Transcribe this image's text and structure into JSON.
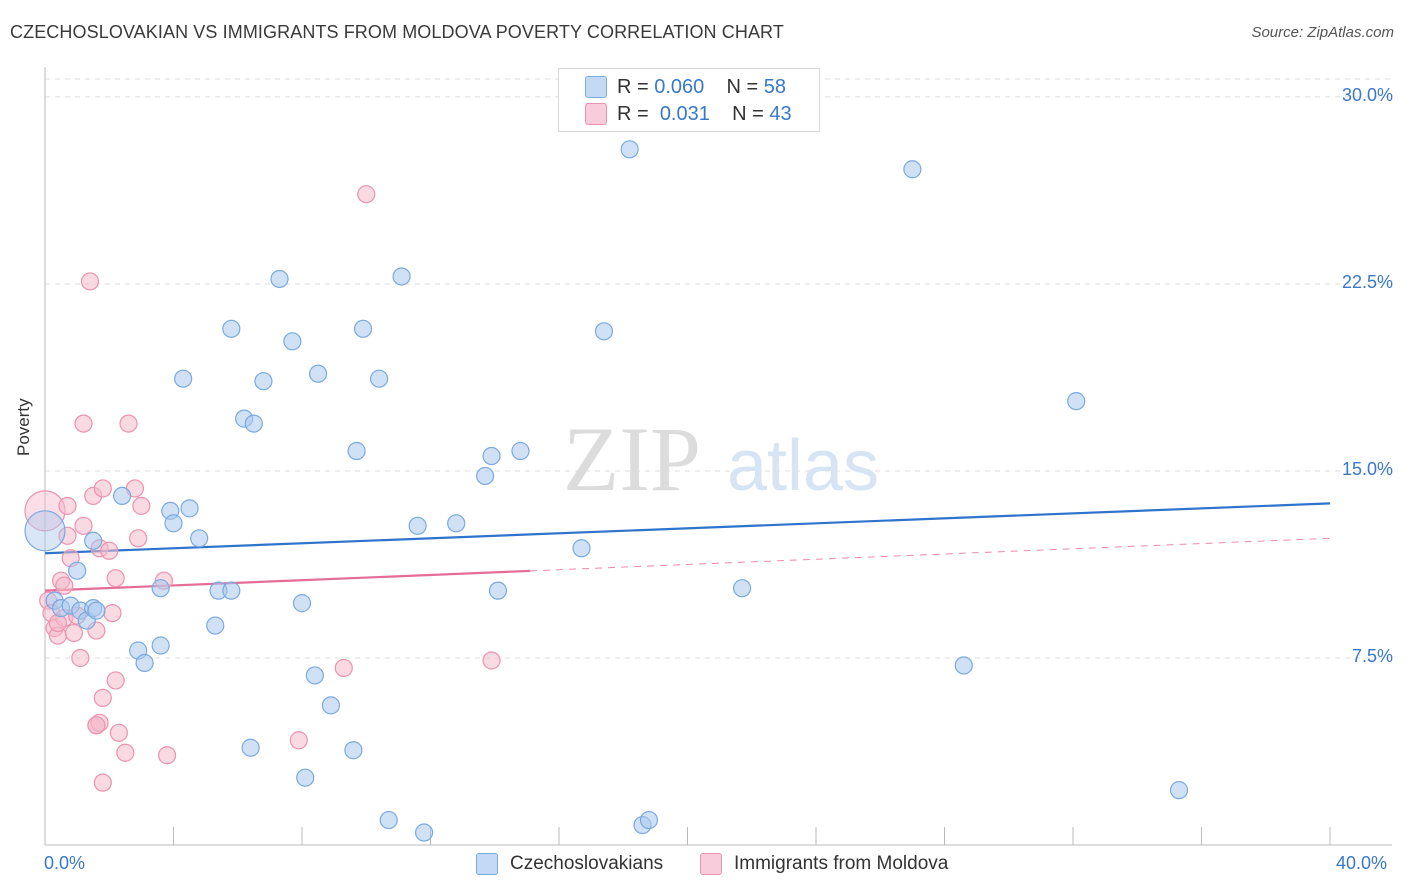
{
  "title": "CZECHOSLOVAKIAN VS IMMIGRANTS FROM MOLDOVA POVERTY CORRELATION CHART",
  "source": "Source: ZipAtlas.com",
  "watermark": {
    "zip": "ZIP",
    "atlas": "atlas"
  },
  "colors": {
    "blue_fill": "#a9c8ee",
    "blue_stroke": "#7aaae0",
    "blue_line": "#2f74cc",
    "pink_fill": "#f4b9cb",
    "pink_stroke": "#ec93b0",
    "pink_line": "#e46d98",
    "axis_text": "#3a78c9",
    "grid": "#dddddd"
  },
  "legend": {
    "blue": {
      "r_label": "R = ",
      "r_value": "0.060",
      "n_label": "N = ",
      "n_value": "58"
    },
    "pink": {
      "r_label": "R = ",
      "r_value": "0.031",
      "n_label": "N = ",
      "n_value": "43"
    }
  },
  "chart_data": {
    "type": "scatter",
    "title": "CZECHOSLOVAKIAN VS IMMIGRANTS FROM MOLDOVA POVERTY CORRELATION CHART",
    "xlabel": "",
    "ylabel": "Poverty",
    "xlim": [
      0,
      40
    ],
    "ylim": [
      0,
      31
    ],
    "x_tick_labels": [
      "0.0%",
      "40.0%"
    ],
    "y_ticks": [
      7.5,
      15.0,
      22.5,
      30.0
    ],
    "y_tick_labels": [
      "7.5%",
      "15.0%",
      "22.5%",
      "30.0%"
    ],
    "grid": true,
    "series": [
      {
        "name": "Czechoslovakians",
        "color": "#a9c8ee",
        "trend": {
          "x0": 0,
          "y0": 11.7,
          "x1": 40,
          "y1": 13.7,
          "dashed_from": null
        },
        "points": [
          [
            0.0,
            12.6
          ],
          [
            0.3,
            9.8
          ],
          [
            0.5,
            9.5
          ],
          [
            0.8,
            9.6
          ],
          [
            1.0,
            11.0
          ],
          [
            1.1,
            9.4
          ],
          [
            1.3,
            9.0
          ],
          [
            1.5,
            9.5
          ],
          [
            1.6,
            9.4
          ],
          [
            2.4,
            14.0
          ],
          [
            2.9,
            7.8
          ],
          [
            3.1,
            7.3
          ],
          [
            3.6,
            8.0
          ],
          [
            3.9,
            13.4
          ],
          [
            4.3,
            18.7
          ],
          [
            4.8,
            12.3
          ],
          [
            5.4,
            10.2
          ],
          [
            5.3,
            8.8
          ],
          [
            4.0,
            12.9
          ],
          [
            4.5,
            13.5
          ],
          [
            1.5,
            12.2
          ],
          [
            5.8,
            20.7
          ],
          [
            6.2,
            17.1
          ],
          [
            6.5,
            16.9
          ],
          [
            6.4,
            3.9
          ],
          [
            6.8,
            18.6
          ],
          [
            7.3,
            22.7
          ],
          [
            7.7,
            20.2
          ],
          [
            8.0,
            9.7
          ],
          [
            8.1,
            2.7
          ],
          [
            8.4,
            6.8
          ],
          [
            8.5,
            18.9
          ],
          [
            8.9,
            5.6
          ],
          [
            9.9,
            20.7
          ],
          [
            9.7,
            15.8
          ],
          [
            9.6,
            3.8
          ],
          [
            10.4,
            18.7
          ],
          [
            10.7,
            1.0
          ],
          [
            11.1,
            22.8
          ],
          [
            11.6,
            12.8
          ],
          [
            11.8,
            0.5
          ],
          [
            12.8,
            12.9
          ],
          [
            13.7,
            14.8
          ],
          [
            13.9,
            15.6
          ],
          [
            14.1,
            10.2
          ],
          [
            14.8,
            15.8
          ],
          [
            16.7,
            11.9
          ],
          [
            17.4,
            20.6
          ],
          [
            18.2,
            27.9
          ],
          [
            18.6,
            0.8
          ],
          [
            18.8,
            1.0
          ],
          [
            21.7,
            10.3
          ],
          [
            27.0,
            27.1
          ],
          [
            28.6,
            7.2
          ],
          [
            32.1,
            17.8
          ],
          [
            35.3,
            2.2
          ],
          [
            3.6,
            10.3
          ],
          [
            5.8,
            10.2
          ]
        ]
      },
      {
        "name": "Immigrants from Moldova",
        "color": "#f4b9cb",
        "trend": {
          "x0": 0,
          "y0": 10.2,
          "x1": 40,
          "y1": 12.3,
          "dashed_from": 15.1
        },
        "points": [
          [
            0.0,
            13.4
          ],
          [
            0.1,
            9.8
          ],
          [
            0.2,
            9.3
          ],
          [
            0.3,
            8.7
          ],
          [
            0.4,
            8.4
          ],
          [
            0.5,
            10.6
          ],
          [
            0.6,
            10.4
          ],
          [
            0.6,
            9.1
          ],
          [
            0.7,
            13.6
          ],
          [
            0.7,
            12.4
          ],
          [
            0.8,
            11.5
          ],
          [
            0.9,
            8.5
          ],
          [
            1.0,
            9.2
          ],
          [
            1.1,
            7.5
          ],
          [
            1.2,
            12.8
          ],
          [
            1.4,
            22.6
          ],
          [
            1.2,
            16.9
          ],
          [
            1.5,
            14.0
          ],
          [
            1.6,
            4.8
          ],
          [
            1.7,
            4.9
          ],
          [
            1.6,
            8.6
          ],
          [
            1.7,
            11.9
          ],
          [
            1.8,
            14.3
          ],
          [
            1.8,
            2.5
          ],
          [
            1.8,
            5.9
          ],
          [
            2.0,
            11.8
          ],
          [
            2.1,
            9.3
          ],
          [
            2.2,
            6.6
          ],
          [
            2.2,
            10.7
          ],
          [
            2.3,
            4.5
          ],
          [
            2.5,
            3.7
          ],
          [
            2.6,
            16.9
          ],
          [
            2.8,
            14.3
          ],
          [
            2.9,
            12.3
          ],
          [
            3.0,
            13.6
          ],
          [
            3.7,
            10.6
          ],
          [
            3.8,
            3.6
          ],
          [
            7.9,
            4.2
          ],
          [
            9.3,
            7.1
          ],
          [
            10.0,
            26.1
          ],
          [
            13.9,
            7.4
          ],
          [
            0.4,
            8.9
          ],
          [
            1.6,
            4.8
          ]
        ]
      }
    ],
    "legend_position": "top-center"
  }
}
